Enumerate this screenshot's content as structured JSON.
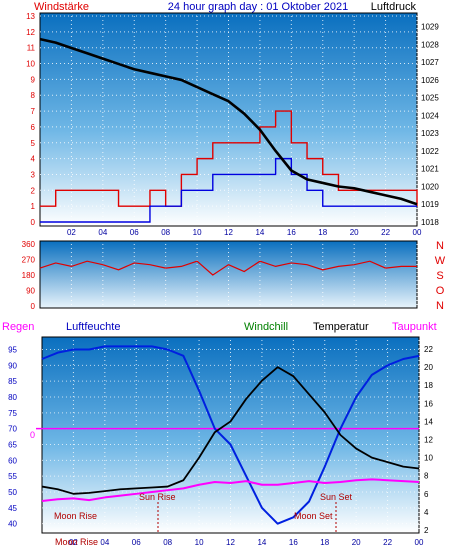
{
  "header": {
    "left_label": "Windstärke",
    "title": "24 hour graph day : 01 Oktober 2021",
    "right_label": "Luftdruck"
  },
  "colors": {
    "wind": "#e00000",
    "gust": "#0000e0",
    "pressure": "#000000",
    "temperature": "#000000",
    "humidity": "#0020e0",
    "dewpoint": "#ff00ff",
    "windchill": "#008000",
    "regen": "#ff00ff",
    "panel_top": "#0a78c8",
    "panel_bottom": "#ffffff"
  },
  "x_axis": {
    "tick_labels": [
      "02",
      "04",
      "06",
      "08",
      "10",
      "12",
      "14",
      "16",
      "18",
      "20",
      "22",
      "00"
    ]
  },
  "direction_labels": [
    "N",
    "W",
    "S",
    "O",
    "N"
  ],
  "legend_row": {
    "regen": "Regen",
    "luftfeuchte": "Luftfeuchte",
    "windchill": "Windchill",
    "temperatur": "Temperatur",
    "taupunkt": "Taupunkt"
  },
  "annotations": {
    "moon_rise": "Moon Rise",
    "sun_rise": "Sun Rise",
    "sun_set": "Sun Set",
    "moon_set": "Moon Set",
    "moon_rise_bottom": "Moon Rise"
  },
  "regen_zero_label": "0",
  "chart_data": [
    {
      "type": "line",
      "panel": "wind-pressure",
      "x_hours": [
        0,
        1,
        2,
        3,
        4,
        5,
        6,
        7,
        8,
        9,
        10,
        11,
        12,
        13,
        14,
        15,
        16,
        17,
        18,
        19,
        20,
        21,
        22,
        23,
        24
      ],
      "left_axis": {
        "label": "Windstärke",
        "ticks": [
          0,
          1,
          2,
          3,
          4,
          5,
          6,
          7,
          8,
          9,
          10,
          11,
          12,
          13
        ],
        "ylim": [
          0,
          13
        ]
      },
      "right_axis": {
        "label": "Luftdruck",
        "ticks": [
          1018,
          1019,
          1020,
          1021,
          1022,
          1023,
          1024,
          1025,
          1026,
          1027,
          1028,
          1029
        ],
        "ylim": [
          1018,
          1029.6
        ]
      },
      "series": [
        {
          "name": "Luftdruck",
          "axis": "right",
          "values": [
            1028.3,
            1028.1,
            1027.8,
            1027.5,
            1027.2,
            1026.9,
            1026.6,
            1026.4,
            1026.2,
            1026.0,
            1025.6,
            1025.2,
            1024.8,
            1024.1,
            1023.2,
            1022.0,
            1020.9,
            1020.4,
            1020.2,
            1020.0,
            1019.9,
            1019.7,
            1019.5,
            1019.3,
            1019.0
          ]
        },
        {
          "axis": "left",
          "values": [
            1,
            2,
            2,
            2,
            2,
            1,
            1,
            2,
            1,
            3,
            4,
            5,
            5,
            5,
            6,
            7,
            5,
            4,
            3,
            2,
            2,
            2,
            2,
            2,
            1
          ]
        },
        {
          "axis": "left",
          "values": [
            0,
            0,
            0,
            0,
            0,
            0,
            0,
            1,
            1,
            2,
            2,
            3,
            3,
            3,
            3,
            4,
            3,
            2,
            1,
            1,
            1,
            1,
            1,
            1,
            1
          ]
        }
      ]
    },
    {
      "type": "line",
      "panel": "wind-direction",
      "x_hours": [
        0,
        1,
        2,
        3,
        4,
        5,
        6,
        7,
        8,
        9,
        10,
        11,
        12,
        13,
        14,
        15,
        16,
        17,
        18,
        19,
        20,
        21,
        22,
        23,
        24
      ],
      "y_axis": {
        "ticks": [
          0,
          90,
          180,
          270,
          360
        ],
        "ylim": [
          0,
          360
        ]
      },
      "series": [
        {
          "values": [
            220,
            250,
            230,
            260,
            240,
            210,
            250,
            240,
            220,
            230,
            260,
            180,
            240,
            200,
            260,
            230,
            250,
            240,
            210,
            230,
            240,
            260,
            220,
            230,
            230
          ]
        }
      ]
    },
    {
      "type": "line",
      "panel": "temperature-humidity",
      "x_hours": [
        0,
        1,
        2,
        3,
        4,
        5,
        6,
        7,
        8,
        9,
        10,
        11,
        12,
        13,
        14,
        15,
        16,
        17,
        18,
        19,
        20,
        21,
        22,
        23,
        24
      ],
      "left_axis": {
        "label": "Luftfeuchte",
        "ticks": [
          40,
          45,
          50,
          55,
          60,
          65,
          70,
          75,
          80,
          85,
          90,
          95
        ],
        "ylim": [
          38,
          98
        ]
      },
      "right_axis": {
        "label": "Temperatur",
        "ticks": [
          2,
          4,
          6,
          8,
          10,
          12,
          14,
          16,
          18,
          20,
          22
        ],
        "ylim": [
          2,
          23
        ]
      },
      "regen_line_level": 70,
      "series": [
        {
          "name": "Luftfeuchte",
          "axis": "left",
          "values": [
            92,
            94,
            95,
            95,
            96,
            96,
            96,
            96,
            95,
            93,
            82,
            70,
            65,
            55,
            45,
            40,
            42,
            47,
            58,
            70,
            80,
            87,
            90,
            92,
            93
          ]
        },
        {
          "name": "Temperatur",
          "axis": "right",
          "values": [
            6.8,
            6.5,
            6.0,
            6.1,
            6.3,
            6.5,
            6.6,
            6.7,
            6.8,
            7.5,
            10.0,
            12.8,
            14.0,
            16.5,
            18.5,
            20.0,
            19.0,
            17.0,
            15.0,
            12.5,
            11.0,
            10.0,
            9.5,
            9.0,
            8.8
          ]
        },
        {
          "name": "Taupunkt",
          "axis": "right",
          "values": [
            5.2,
            5.4,
            5.5,
            5.3,
            5.6,
            5.8,
            6.0,
            6.2,
            6.4,
            6.6,
            7.0,
            7.3,
            7.2,
            7.4,
            7.0,
            7.0,
            7.2,
            7.4,
            7.2,
            7.3,
            7.5,
            7.6,
            7.5,
            7.4,
            7.3
          ]
        }
      ]
    }
  ]
}
